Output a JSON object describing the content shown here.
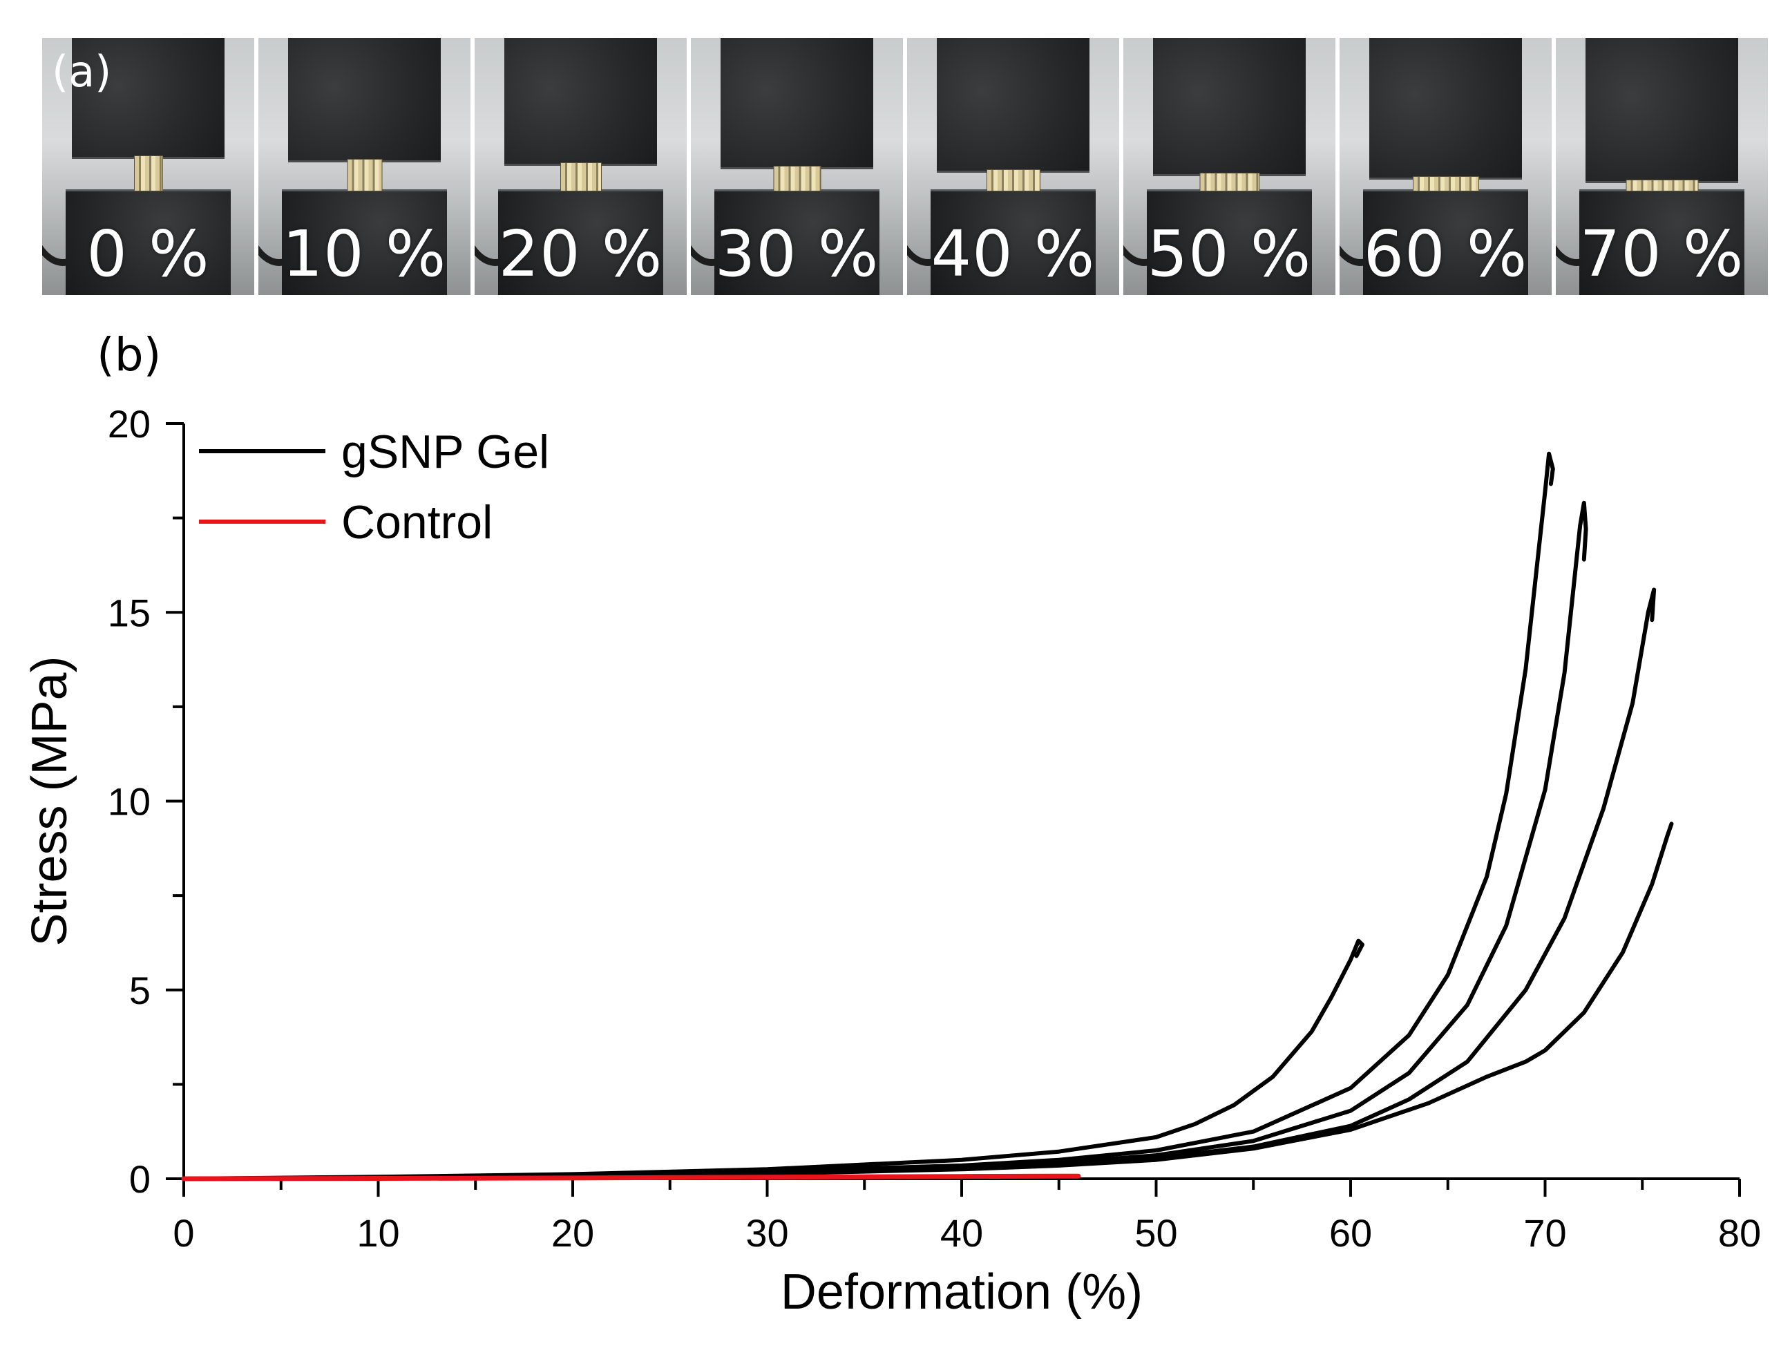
{
  "panel_a": {
    "label": "(a)",
    "frames": [
      {
        "label": "0 %",
        "deformation": 0
      },
      {
        "label": "10 %",
        "deformation": 10
      },
      {
        "label": "20 %",
        "deformation": 20
      },
      {
        "label": "30 %",
        "deformation": 30
      },
      {
        "label": "40 %",
        "deformation": 40
      },
      {
        "label": "50 %",
        "deformation": 50
      },
      {
        "label": "60 %",
        "deformation": 60
      },
      {
        "label": "70 %",
        "deformation": 70
      }
    ]
  },
  "panel_b": {
    "label": "(b)"
  },
  "chart_data": {
    "type": "line",
    "title": "",
    "xlabel": "Deformation (%)",
    "ylabel": "Stress (MPa)",
    "xlim": [
      0,
      80
    ],
    "ylim": [
      0,
      20
    ],
    "xticks": [
      0,
      10,
      20,
      30,
      40,
      50,
      60,
      70,
      80
    ],
    "yticks": [
      0,
      5,
      10,
      15,
      20
    ],
    "grid": false,
    "legend_position": "top-left",
    "legend": [
      {
        "name": "gSNP Gel",
        "color": "#000000"
      },
      {
        "name": "Control",
        "color": "#e8141b"
      }
    ],
    "series": [
      {
        "name": "gSNP Gel",
        "color": "#000000",
        "x": [
          0,
          10,
          20,
          30,
          40,
          45,
          50,
          52,
          54,
          56,
          58,
          59,
          60,
          60.4,
          60.6,
          60.3
        ],
        "y": [
          0,
          0.05,
          0.12,
          0.25,
          0.5,
          0.72,
          1.1,
          1.45,
          1.95,
          2.7,
          3.9,
          4.8,
          5.8,
          6.3,
          6.2,
          5.9
        ]
      },
      {
        "name": "gSNP Gel",
        "color": "#000000",
        "x": [
          0,
          10,
          20,
          30,
          40,
          45,
          50,
          55,
          60,
          63,
          65,
          67,
          68,
          69,
          70,
          70.2,
          70.4,
          70.3
        ],
        "y": [
          0,
          0.04,
          0.1,
          0.2,
          0.35,
          0.5,
          0.75,
          1.25,
          2.4,
          3.8,
          5.4,
          8.0,
          10.2,
          13.5,
          18.2,
          19.2,
          18.8,
          18.4
        ]
      },
      {
        "name": "gSNP Gel",
        "color": "#000000",
        "x": [
          0,
          10,
          20,
          30,
          40,
          45,
          50,
          55,
          60,
          63,
          66,
          68,
          70,
          71,
          71.8,
          72.0,
          72.1,
          72.0
        ],
        "y": [
          0,
          0.03,
          0.08,
          0.17,
          0.3,
          0.42,
          0.62,
          1.0,
          1.8,
          2.8,
          4.6,
          6.7,
          10.3,
          13.4,
          17.3,
          17.9,
          17.2,
          16.4
        ]
      },
      {
        "name": "gSNP Gel",
        "color": "#000000",
        "x": [
          0,
          10,
          20,
          30,
          40,
          45,
          50,
          55,
          60,
          63,
          66,
          69,
          71,
          73,
          74.5,
          75.3,
          75.6,
          75.5
        ],
        "y": [
          0,
          0.03,
          0.07,
          0.15,
          0.27,
          0.38,
          0.55,
          0.85,
          1.4,
          2.1,
          3.1,
          5.0,
          6.9,
          9.8,
          12.6,
          15.0,
          15.6,
          14.8
        ]
      },
      {
        "name": "gSNP Gel",
        "color": "#000000",
        "x": [
          0,
          10,
          20,
          30,
          40,
          45,
          50,
          55,
          60,
          64,
          67,
          69,
          70,
          72,
          74,
          75.5,
          76.3,
          76.5
        ],
        "y": [
          0,
          0.02,
          0.06,
          0.13,
          0.25,
          0.35,
          0.5,
          0.8,
          1.3,
          2.0,
          2.7,
          3.1,
          3.4,
          4.4,
          6.0,
          7.8,
          9.1,
          9.4
        ]
      },
      {
        "name": "Control",
        "color": "#e8141b",
        "x": [
          0,
          10,
          20,
          30,
          40,
          46
        ],
        "y": [
          0,
          0.01,
          0.02,
          0.04,
          0.06,
          0.07
        ]
      }
    ]
  }
}
